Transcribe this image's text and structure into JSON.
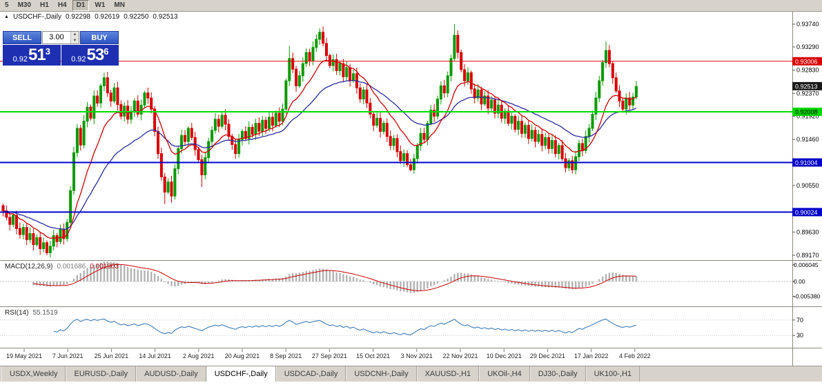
{
  "toolbar": {
    "periods": [
      {
        "label": "5",
        "active": false
      },
      {
        "label": "M30",
        "active": false
      },
      {
        "label": "H1",
        "active": false
      },
      {
        "label": "H4",
        "active": false
      },
      {
        "label": "D1",
        "active": true
      },
      {
        "label": "W1",
        "active": false
      },
      {
        "label": "MN",
        "active": false
      }
    ]
  },
  "chart_header": {
    "collapse_marker": "▲",
    "symbol": "USDCHF-,Daily",
    "open": "0.92298",
    "high": "0.92619",
    "low": "0.92250",
    "close": "0.92513"
  },
  "trade_widget": {
    "sell_label": "SELL",
    "buy_label": "BUY",
    "volume": "3.00",
    "bid": {
      "prefix": "0.92",
      "pips": "51",
      "point": "3"
    },
    "ask": {
      "prefix": "0.92",
      "pips": "53",
      "point": "6"
    }
  },
  "price_axis": {
    "ticks": [
      {
        "label": "0.93740",
        "value": 0.9374
      },
      {
        "label": "0.93290",
        "value": 0.9329
      },
      {
        "label": "0.92830",
        "value": 0.9283
      },
      {
        "label": "0.92370",
        "value": 0.9237
      },
      {
        "label": "0.91920",
        "value": 0.9192
      },
      {
        "label": "0.91460",
        "value": 0.9146
      },
      {
        "label": "0.90550",
        "value": 0.9055
      },
      {
        "label": "0.89630",
        "value": 0.8963
      },
      {
        "label": "0.89170",
        "value": 0.8917
      }
    ],
    "badges": [
      {
        "label": "0.93006",
        "value": 0.93006,
        "bg": "#d80000",
        "fg": "#ffffff"
      },
      {
        "label": "0.92513",
        "value": 0.92513,
        "bg": "#1a1a1a",
        "fg": "#ffffff"
      },
      {
        "label": "0.92008",
        "value": 0.92008,
        "bg": "#00d800",
        "fg": "#000000"
      },
      {
        "label": "0.91004",
        "value": 0.91004,
        "bg": "#0000c8",
        "fg": "#ffffff"
      },
      {
        "label": "0.90024",
        "value": 0.90024,
        "bg": "#0000c8",
        "fg": "#ffffff"
      }
    ]
  },
  "levels": [
    {
      "value": 0.93006,
      "color": "#e00000",
      "width": 1
    },
    {
      "value": 0.92008,
      "color": "#00dc00",
      "width": 2
    },
    {
      "value": 0.91004,
      "color": "#0000cc",
      "width": 2
    },
    {
      "value": 0.90024,
      "color": "#0000cc",
      "width": 2
    }
  ],
  "indicators": {
    "macd": {
      "name": "MACD(12,26,9)",
      "value_main": "0.001686",
      "value_signal": "0.001903",
      "fast": 12,
      "slow": 26,
      "signal": 9,
      "axis": [
        {
          "label": "0.006045",
          "value": 0.006045
        },
        {
          "label": "0.00",
          "value": 0
        },
        {
          "label": "-0.005380",
          "value": -0.00538
        }
      ]
    },
    "rsi": {
      "name": "RSI(14)",
      "value": "55.1519",
      "period": 14,
      "axis": [
        {
          "label": "70",
          "value": 70
        },
        {
          "label": "30",
          "value": 30
        }
      ]
    }
  },
  "x_axis": {
    "dates": [
      "19 May 2021",
      "7 Jun 2021",
      "25 Jun 2021",
      "14 Jul 2021",
      "2 Aug 2021",
      "20 Aug 2021",
      "8 Sep 2021",
      "27 Sep 2021",
      "15 Oct 2021",
      "3 Nov 2021",
      "22 Nov 2021",
      "10 Dec 2021",
      "29 Dec 2021",
      "17 Jan 2022",
      "4 Feb 2022"
    ]
  },
  "tabs": [
    {
      "label": "USDX,Weekly",
      "active": false
    },
    {
      "label": "EURUSD-,Daily",
      "active": false
    },
    {
      "label": "AUDUSD-,Daily",
      "active": false
    },
    {
      "label": "USDCHF-,Daily",
      "active": true
    },
    {
      "label": "USDCAD-,Daily",
      "active": false
    },
    {
      "label": "USDCNH-,Daily",
      "active": false
    },
    {
      "label": "XAUUSD-,H1",
      "active": false
    },
    {
      "label": "UKOil-,H4",
      "active": false
    },
    {
      "label": "DJ30-,Daily",
      "active": false
    },
    {
      "label": "UK100-,H1",
      "active": false
    }
  ],
  "colors": {
    "bull": "#0a9a00",
    "bear": "#d80000",
    "ma_fast": "#d40000",
    "ma_slow": "#2a2aa0",
    "macd_hist": "#b2b2b2",
    "macd_signal": "#c80000",
    "rsi": "#3e7cb8"
  },
  "chart_data": {
    "type": "candlestick",
    "title": "USDCHF-,Daily",
    "ohlc_current": {
      "open": 0.92298,
      "high": 0.92619,
      "low": 0.9225,
      "close": 0.92513
    },
    "y_range_visible": [
      0.8895,
      0.9395
    ],
    "x_range_dates": [
      "May 2021",
      "Feb 2022"
    ],
    "closes": [
      0.9005,
      0.8992,
      0.8978,
      0.8996,
      0.897,
      0.8958,
      0.8972,
      0.8948,
      0.896,
      0.8938,
      0.8952,
      0.893,
      0.8942,
      0.8922,
      0.8935,
      0.8956,
      0.8944,
      0.8968,
      0.895,
      0.8982,
      0.9045,
      0.912,
      0.9168,
      0.9135,
      0.9182,
      0.921,
      0.9188,
      0.9232,
      0.9218,
      0.9252,
      0.9268,
      0.9238,
      0.9222,
      0.9248,
      0.9215,
      0.9192,
      0.9212,
      0.9186,
      0.9202,
      0.9222,
      0.9196,
      0.9214,
      0.9238,
      0.9228,
      0.9206,
      0.9162,
      0.9118,
      0.9072,
      0.9042,
      0.9062,
      0.9034,
      0.9088,
      0.9128,
      0.9154,
      0.9142,
      0.9168,
      0.915,
      0.9126,
      0.9106,
      0.9076,
      0.911,
      0.9142,
      0.9164,
      0.9186,
      0.9172,
      0.9194,
      0.9176,
      0.9152,
      0.9136,
      0.9118,
      0.9146,
      0.9162,
      0.9148,
      0.917,
      0.9156,
      0.9178,
      0.9162,
      0.9184,
      0.9168,
      0.919,
      0.9174,
      0.9198,
      0.9182,
      0.9206,
      0.9262,
      0.9306,
      0.9285,
      0.9252,
      0.9272,
      0.9296,
      0.9318,
      0.9302,
      0.9328,
      0.9344,
      0.9358,
      0.9336,
      0.9312,
      0.9292,
      0.9304,
      0.9282,
      0.9296,
      0.927,
      0.9288,
      0.9262,
      0.9276,
      0.9248,
      0.9226,
      0.9244,
      0.9218,
      0.9196,
      0.9174,
      0.9188,
      0.9162,
      0.9178,
      0.9152,
      0.9134,
      0.9148,
      0.9122,
      0.9104,
      0.9118,
      0.9096,
      0.9086,
      0.9108,
      0.9134,
      0.9158,
      0.9146,
      0.9178,
      0.9204,
      0.9192,
      0.9226,
      0.9252,
      0.9238,
      0.9272,
      0.9306,
      0.9352,
      0.9318,
      0.9284,
      0.9262,
      0.9278,
      0.9246,
      0.9228,
      0.9244,
      0.9216,
      0.9232,
      0.9208,
      0.9224,
      0.9198,
      0.9214,
      0.9188,
      0.9202,
      0.9178,
      0.9192,
      0.9166,
      0.9182,
      0.9158,
      0.9174,
      0.9148,
      0.9164,
      0.9142,
      0.9156,
      0.9134,
      0.915,
      0.9128,
      0.9144,
      0.9118,
      0.9134,
      0.9108,
      0.909,
      0.9104,
      0.9086,
      0.9112,
      0.9138,
      0.9124,
      0.9152,
      0.9168,
      0.9196,
      0.9228,
      0.9262,
      0.9298,
      0.9322,
      0.9296,
      0.9268,
      0.9242,
      0.9222,
      0.9206,
      0.9228,
      0.9214,
      0.923,
      0.9251
    ],
    "spike_highs": {
      "30": 0.9278,
      "85": 0.9331,
      "94": 0.9366,
      "134": 0.9374,
      "179": 0.934,
      "188": 0.92619
    },
    "spike_lows": {
      "13": 0.8917,
      "48": 0.9018,
      "50": 0.9021,
      "59": 0.9052,
      "121": 0.9083,
      "167": 0.9081,
      "169": 0.9079,
      "188": 0.9225
    }
  }
}
